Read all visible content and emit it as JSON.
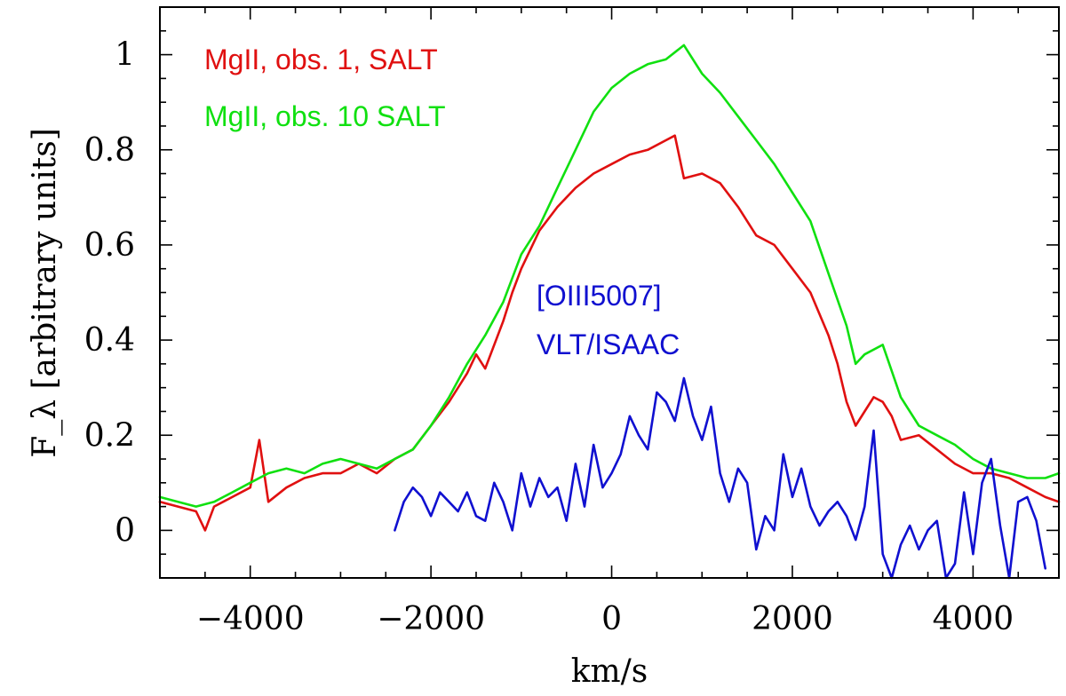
{
  "chart_data": {
    "type": "line",
    "xlabel": "km/s",
    "ylabel": "F_λ [arbitrary units]",
    "xlim": [
      -5000,
      4950
    ],
    "ylim": [
      -0.1,
      1.1
    ],
    "xticks": [
      -4000,
      -2000,
      0,
      2000,
      4000
    ],
    "xtick_labels": [
      "−4000",
      "−2000",
      "0",
      "2000",
      "4000"
    ],
    "yticks": [
      0,
      0.2,
      0.4,
      0.6,
      0.8,
      1.0
    ],
    "ytick_labels": [
      "0",
      "0.2",
      "0.4",
      "0.6",
      "0.8",
      "1"
    ],
    "grid": false,
    "legend": [
      {
        "text": "MgII, obs. 1, SALT",
        "color": "#e01010"
      },
      {
        "text": "MgII, obs. 10 SALT",
        "color": "#10e010"
      }
    ],
    "annotations": [
      {
        "text": "[OIII5007]",
        "color": "#1010d0"
      },
      {
        "text": "VLT/ISAAC",
        "color": "#1010d0"
      }
    ],
    "series": [
      {
        "color": "#e01010",
        "x": [
          -5000,
          -4800,
          -4600,
          -4500,
          -4400,
          -4200,
          -4000,
          -3900,
          -3800,
          -3600,
          -3400,
          -3200,
          -3000,
          -2800,
          -2600,
          -2400,
          -2200,
          -2000,
          -1800,
          -1600,
          -1500,
          -1400,
          -1200,
          -1100,
          -1000,
          -800,
          -600,
          -400,
          -200,
          0,
          200,
          400,
          600,
          700,
          800,
          1000,
          1200,
          1400,
          1600,
          1800,
          2000,
          2200,
          2400,
          2500,
          2600,
          2700,
          2800,
          2900,
          3000,
          3100,
          3200,
          3400,
          3600,
          3800,
          4000,
          4200,
          4400,
          4600,
          4800,
          4950
        ],
        "y": [
          0.06,
          0.05,
          0.04,
          0.0,
          0.05,
          0.07,
          0.09,
          0.19,
          0.06,
          0.09,
          0.11,
          0.12,
          0.12,
          0.14,
          0.12,
          0.15,
          0.17,
          0.22,
          0.27,
          0.33,
          0.37,
          0.34,
          0.44,
          0.5,
          0.55,
          0.63,
          0.68,
          0.72,
          0.75,
          0.77,
          0.79,
          0.8,
          0.82,
          0.83,
          0.74,
          0.75,
          0.73,
          0.68,
          0.62,
          0.6,
          0.55,
          0.5,
          0.41,
          0.35,
          0.27,
          0.22,
          0.25,
          0.28,
          0.27,
          0.24,
          0.19,
          0.2,
          0.17,
          0.14,
          0.12,
          0.12,
          0.11,
          0.09,
          0.07,
          0.06
        ]
      },
      {
        "color": "#10e010",
        "x": [
          -5000,
          -4800,
          -4600,
          -4400,
          -4200,
          -4000,
          -3800,
          -3600,
          -3400,
          -3200,
          -3000,
          -2800,
          -2600,
          -2400,
          -2200,
          -2000,
          -1800,
          -1600,
          -1400,
          -1200,
          -1000,
          -800,
          -600,
          -400,
          -200,
          0,
          200,
          400,
          600,
          800,
          1000,
          1200,
          1400,
          1600,
          1800,
          2000,
          2200,
          2400,
          2600,
          2700,
          2800,
          3000,
          3200,
          3400,
          3600,
          3800,
          4000,
          4200,
          4400,
          4600,
          4800,
          4950
        ],
        "y": [
          0.07,
          0.06,
          0.05,
          0.06,
          0.08,
          0.1,
          0.12,
          0.13,
          0.12,
          0.14,
          0.15,
          0.14,
          0.13,
          0.15,
          0.17,
          0.22,
          0.28,
          0.35,
          0.41,
          0.48,
          0.58,
          0.64,
          0.72,
          0.8,
          0.88,
          0.93,
          0.96,
          0.98,
          0.99,
          1.02,
          0.96,
          0.92,
          0.87,
          0.82,
          0.77,
          0.71,
          0.65,
          0.54,
          0.43,
          0.35,
          0.37,
          0.39,
          0.28,
          0.22,
          0.2,
          0.18,
          0.15,
          0.13,
          0.12,
          0.11,
          0.11,
          0.12
        ]
      },
      {
        "color": "#1010d0",
        "x": [
          -2400,
          -2300,
          -2200,
          -2100,
          -2000,
          -1900,
          -1800,
          -1700,
          -1600,
          -1500,
          -1400,
          -1300,
          -1200,
          -1100,
          -1000,
          -900,
          -800,
          -700,
          -600,
          -500,
          -400,
          -300,
          -200,
          -100,
          0,
          100,
          200,
          300,
          400,
          500,
          600,
          700,
          800,
          900,
          1000,
          1100,
          1200,
          1300,
          1400,
          1500,
          1600,
          1700,
          1800,
          1900,
          2000,
          2100,
          2200,
          2300,
          2400,
          2500,
          2600,
          2700,
          2800,
          2900,
          3000,
          3100,
          3200,
          3300,
          3400,
          3500,
          3600,
          3700,
          3800,
          3900,
          4000,
          4100,
          4200,
          4300,
          4400,
          4500,
          4600,
          4700,
          4800
        ],
        "y": [
          0.0,
          0.06,
          0.09,
          0.07,
          0.03,
          0.08,
          0.06,
          0.04,
          0.08,
          0.03,
          0.02,
          0.1,
          0.06,
          0.0,
          0.12,
          0.05,
          0.11,
          0.07,
          0.09,
          0.02,
          0.14,
          0.05,
          0.18,
          0.09,
          0.12,
          0.16,
          0.24,
          0.2,
          0.17,
          0.29,
          0.27,
          0.23,
          0.32,
          0.24,
          0.19,
          0.26,
          0.12,
          0.06,
          0.13,
          0.1,
          -0.04,
          0.03,
          0.0,
          0.16,
          0.07,
          0.13,
          0.05,
          0.01,
          0.04,
          0.06,
          0.03,
          -0.02,
          0.05,
          0.21,
          -0.05,
          -0.1,
          -0.03,
          0.01,
          -0.04,
          0.0,
          0.02,
          -0.1,
          -0.07,
          0.08,
          -0.05,
          0.1,
          0.15,
          0.01,
          -0.1,
          0.06,
          0.07,
          0.02,
          -0.08
        ]
      }
    ]
  }
}
